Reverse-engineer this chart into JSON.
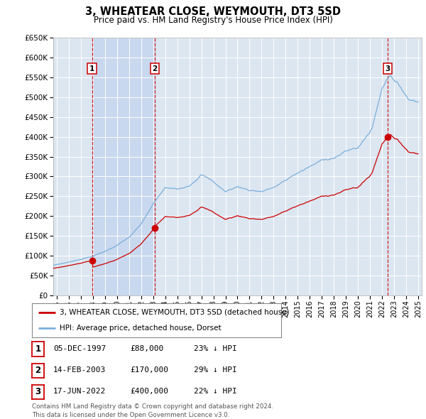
{
  "title": "3, WHEATEAR CLOSE, WEYMOUTH, DT3 5SD",
  "subtitle": "Price paid vs. HM Land Registry's House Price Index (HPI)",
  "background_color": "#ffffff",
  "plot_background": "#dce6f1",
  "plot_background_shaded": "#c8d8ee",
  "grid_color": "#ffffff",
  "sale_points": [
    {
      "date": 1997.92,
      "price": 88000,
      "label": "1"
    },
    {
      "date": 2003.12,
      "price": 170000,
      "label": "2"
    },
    {
      "date": 2022.46,
      "price": 400000,
      "label": "3"
    }
  ],
  "sale_info": [
    {
      "label": "1",
      "date": "05-DEC-1997",
      "price": "£88,000",
      "hpi": "23% ↓ HPI"
    },
    {
      "label": "2",
      "date": "14-FEB-2003",
      "price": "£170,000",
      "hpi": "29% ↓ HPI"
    },
    {
      "label": "3",
      "date": "17-JUN-2022",
      "price": "£400,000",
      "hpi": "22% ↓ HPI"
    }
  ],
  "legend_line1": "3, WHEATEAR CLOSE, WEYMOUTH, DT3 5SD (detached house)",
  "legend_line2": "HPI: Average price, detached house, Dorset",
  "footer": "Contains HM Land Registry data © Crown copyright and database right 2024.\nThis data is licensed under the Open Government Licence v3.0.",
  "hpi_color": "#7aafdb",
  "sale_color": "#cc0000",
  "vline_color": "#cc0000",
  "ylim": [
    0,
    650000
  ],
  "xlim_start": 1994.7,
  "xlim_end": 2025.3
}
